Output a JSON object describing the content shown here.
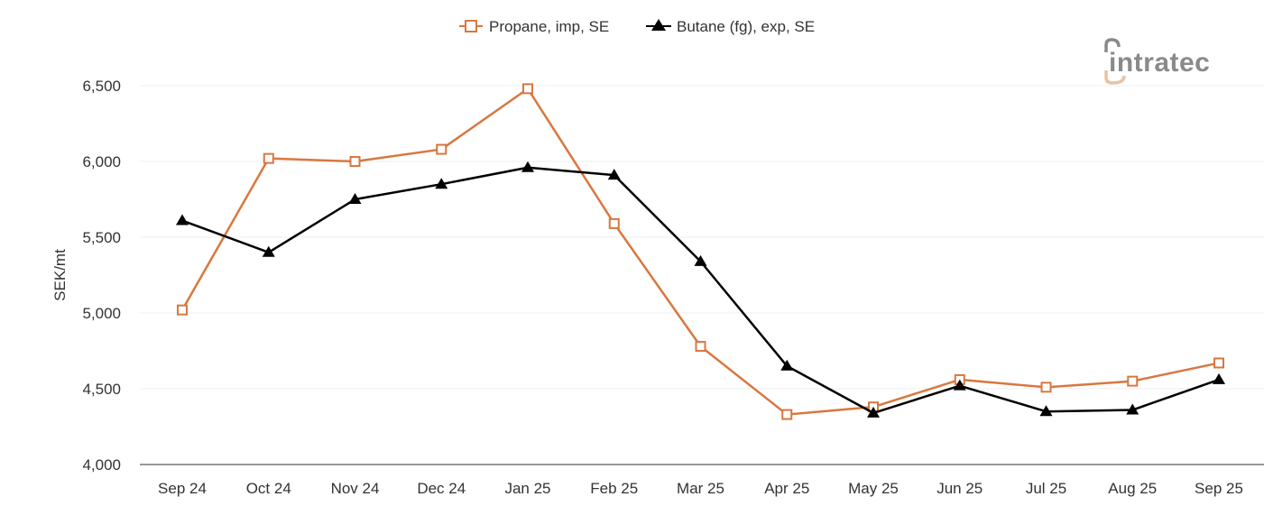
{
  "legend": [
    {
      "label": "Propane, imp, SE",
      "color": "#d9773f",
      "marker": "open-square"
    },
    {
      "label": "Butane (fg), exp, SE",
      "color": "#000000",
      "marker": "filled-triangle"
    }
  ],
  "logo": {
    "text": "intratec",
    "color": "#8a8a8a",
    "accent": "#e8c3a3"
  },
  "chart_data": {
    "type": "line",
    "title": "",
    "xlabel": "",
    "ylabel": "SEK/mt",
    "categories": [
      "Sep 24",
      "Oct 24",
      "Nov 24",
      "Dec 24",
      "Jan 25",
      "Feb 25",
      "Mar 25",
      "Apr 25",
      "May 25",
      "Jun 25",
      "Jul 25",
      "Aug 25",
      "Sep 25"
    ],
    "series": [
      {
        "name": "Propane, imp, SE",
        "color": "#d9773f",
        "marker": "open-square",
        "values": [
          5020,
          6020,
          6000,
          6080,
          6480,
          5590,
          4780,
          4330,
          4380,
          4560,
          4510,
          4550,
          4670
        ]
      },
      {
        "name": "Butane (fg), exp, SE",
        "color": "#000000",
        "marker": "filled-triangle",
        "values": [
          5610,
          5400,
          5750,
          5850,
          5960,
          5910,
          5340,
          4650,
          4340,
          4520,
          4350,
          4360,
          4560
        ]
      }
    ],
    "ylim": [
      4000,
      6500
    ],
    "yticks": [
      4000,
      4500,
      5000,
      5500,
      6000,
      6500
    ],
    "ytick_labels": [
      "4,000",
      "4,500",
      "5,000",
      "5,500",
      "6,000",
      "6,500"
    ],
    "grid": true,
    "legend_position": "top-center"
  }
}
